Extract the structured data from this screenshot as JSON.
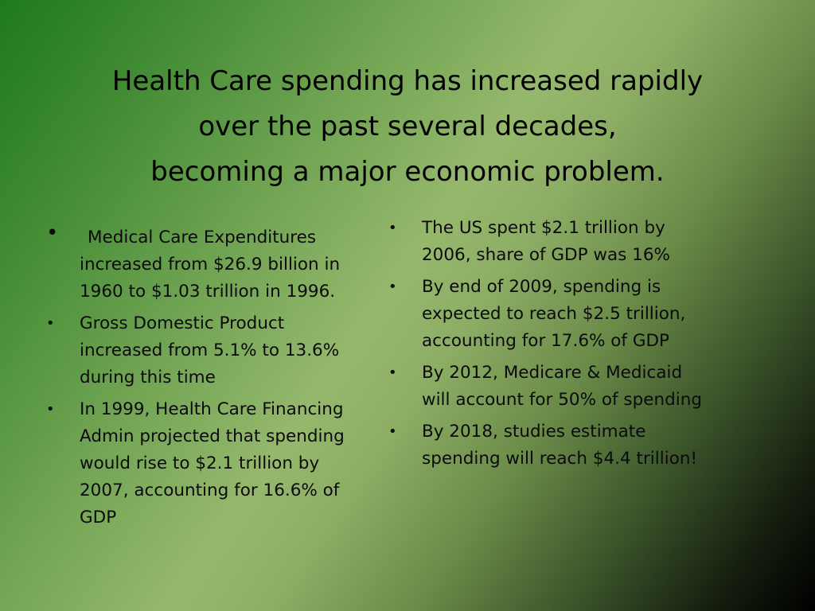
{
  "slide": {
    "title_lines": [
      "Health Care spending has increased rapidly",
      "over the past several decades,",
      "becoming a major economic problem."
    ],
    "left_bullets": [
      "Medical Care Expenditures increased from $26.9 billion in 1960 to $1.03 trillion in 1996.",
      "Gross Domestic Product increased from 5.1% to 13.6% during this time",
      "In 1999, Health Care Financing Admin projected that spending would rise to $2.1 trillion by 2007, accounting for 16.6% of GDP"
    ],
    "right_bullets": [
      "The US spent $2.1 trillion by 2006, share of GDP was 16%",
      "By end of 2009, spending is expected to reach $2.5 trillion, accounting for 17.6% of GDP",
      "By 2012, Medicare & Medicaid will account for 50% of spending",
      "By 2018, studies estimate spending will reach $4.4 trillion!"
    ],
    "bullet_glyph": "•"
  }
}
